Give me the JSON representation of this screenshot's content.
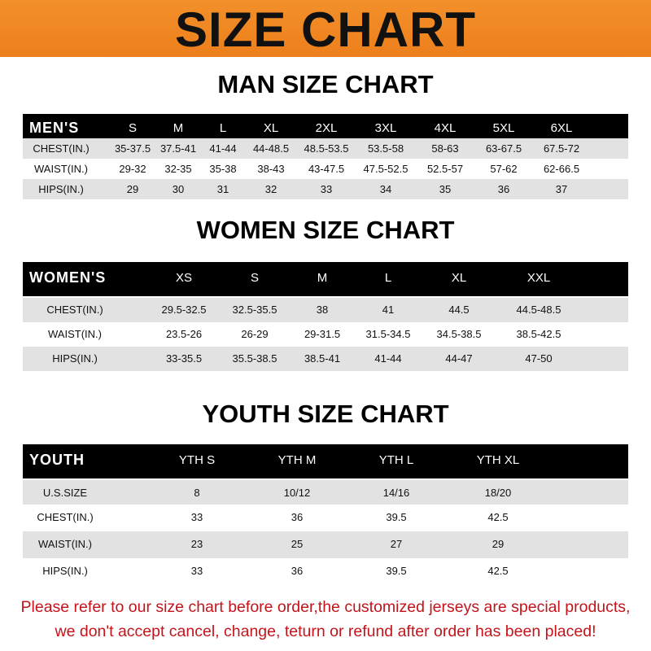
{
  "banner_title": "SIZE CHART",
  "colors": {
    "banner": "#f08a24",
    "header_row": "#000000",
    "stripe": "#e2e2e2",
    "note": "#c4141b"
  },
  "men": {
    "title": "MAN SIZE CHART",
    "header": [
      "MEN'S",
      "S",
      "M",
      "L",
      "XL",
      "2XL",
      "3XL",
      "4XL",
      "5XL",
      "6XL"
    ],
    "rows": [
      [
        "CHEST(IN.)",
        "35-37.5",
        "37.5-41",
        "41-44",
        "44-48.5",
        "48.5-53.5",
        "53.5-58",
        "58-63",
        "63-67.5",
        "67.5-72"
      ],
      [
        "WAIST(IN.)",
        "29-32",
        "32-35",
        "35-38",
        "38-43",
        "43-47.5",
        "47.5-52.5",
        "52.5-57",
        "57-62",
        "62-66.5"
      ],
      [
        "HIPS(IN.)",
        "29",
        "30",
        "31",
        "32",
        "33",
        "34",
        "35",
        "36",
        "37"
      ]
    ]
  },
  "women": {
    "title": "WOMEN SIZE CHART",
    "header": [
      "WOMEN'S",
      "XS",
      "S",
      "M",
      "L",
      "XL",
      "XXL"
    ],
    "rows": [
      [
        "CHEST(IN.)",
        "29.5-32.5",
        "32.5-35.5",
        "38",
        "41",
        "44.5",
        "44.5-48.5"
      ],
      [
        "WAIST(IN.)",
        "23.5-26",
        "26-29",
        "29-31.5",
        "31.5-34.5",
        "34.5-38.5",
        "38.5-42.5"
      ],
      [
        "HIPS(IN.)",
        "33-35.5",
        "35.5-38.5",
        "38.5-41",
        "41-44",
        "44-47",
        "47-50"
      ]
    ]
  },
  "youth": {
    "title": "YOUTH SIZE CHART",
    "header": [
      "YOUTH",
      "YTH S",
      "YTH M",
      "YTH L",
      "YTH XL"
    ],
    "rows": [
      [
        "U.S.SIZE",
        "8",
        "10/12",
        "14/16",
        "18/20"
      ],
      [
        "CHEST(IN.)",
        "33",
        "36",
        "39.5",
        "42.5"
      ],
      [
        "WAIST(IN.)",
        "23",
        "25",
        "27",
        "29"
      ],
      [
        "HIPS(IN.)",
        "33",
        "36",
        "39.5",
        "42.5"
      ]
    ]
  },
  "note": {
    "line1": "Please refer to our size chart before order,the customized jerseys are special products,",
    "line2": "we don't accept cancel, change, teturn or refund after order has been placed!"
  }
}
